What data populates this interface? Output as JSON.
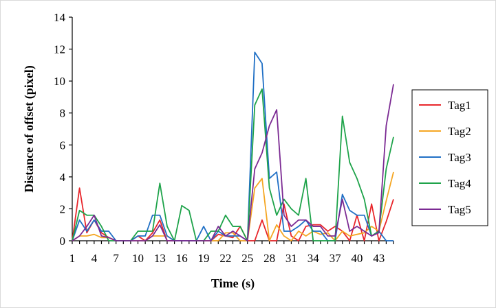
{
  "chart_data": {
    "type": "line",
    "title": "",
    "xlabel": "Time (s)",
    "ylabel": "Distance of offset (pixel)",
    "xlim": [
      1,
      45
    ],
    "ylim": [
      0,
      14
    ],
    "y_ticks": [
      0,
      2,
      4,
      6,
      8,
      10,
      12,
      14
    ],
    "x_ticks": [
      1,
      4,
      7,
      10,
      13,
      16,
      19,
      22,
      25,
      28,
      31,
      34,
      37,
      40,
      43
    ],
    "x": [
      1,
      2,
      3,
      4,
      5,
      6,
      7,
      8,
      9,
      10,
      11,
      12,
      13,
      14,
      15,
      16,
      17,
      18,
      19,
      20,
      21,
      22,
      23,
      24,
      25,
      26,
      27,
      28,
      29,
      30,
      31,
      32,
      33,
      34,
      35,
      36,
      37,
      38,
      39,
      40,
      41,
      42,
      43,
      44,
      45
    ],
    "grid": false,
    "legend_position": "right",
    "series": [
      {
        "name": "Tag1",
        "color": "#e8262b",
        "values": [
          0,
          3.3,
          0.5,
          1.3,
          0.5,
          0.2,
          0,
          0,
          0,
          0.3,
          0,
          0.5,
          1.3,
          0,
          0,
          0,
          0,
          0,
          0,
          0,
          0.4,
          0.3,
          0.2,
          0.9,
          0,
          0,
          1.3,
          0,
          0,
          2.3,
          0.3,
          0,
          0.9,
          1.0,
          1.0,
          0.6,
          0.9,
          0.6,
          0,
          1.6,
          0,
          2.3,
          0,
          1.2,
          2.6
        ]
      },
      {
        "name": "Tag2",
        "color": "#f5a623",
        "values": [
          0,
          0.3,
          0.3,
          0.4,
          0.2,
          0.2,
          0,
          0,
          0,
          0,
          0,
          0.3,
          0.3,
          0.3,
          0,
          0,
          0,
          0,
          0,
          0,
          0,
          0.5,
          0.5,
          0,
          0,
          3.3,
          3.9,
          0,
          1.0,
          0.3,
          0,
          0.6,
          0.3,
          0.6,
          0.4,
          0.5,
          0,
          0.6,
          0.3,
          0.4,
          0.5,
          0.9,
          0.6,
          2.5,
          4.3
        ]
      },
      {
        "name": "Tag3",
        "color": "#1f6fc5",
        "values": [
          0,
          1.3,
          0.6,
          1.3,
          0.6,
          0.6,
          0,
          0,
          0,
          0.3,
          0.3,
          1.6,
          1.6,
          0.3,
          0,
          0,
          0,
          0,
          0.9,
          0,
          0.6,
          0.3,
          0.3,
          0.3,
          0,
          11.8,
          11.1,
          3.9,
          4.3,
          0.6,
          0.6,
          0.9,
          1.3,
          0.6,
          0.6,
          0,
          0,
          2.9,
          1.9,
          1.6,
          1.6,
          0.3,
          0.6,
          0,
          0
        ]
      },
      {
        "name": "Tag4",
        "color": "#1ea34a",
        "values": [
          0,
          1.9,
          1.6,
          1.6,
          0.9,
          0,
          0,
          0,
          0,
          0.6,
          0.6,
          0.6,
          3.6,
          0.9,
          0,
          2.2,
          1.9,
          0,
          0,
          0.6,
          0.6,
          1.6,
          0.9,
          0.9,
          0,
          8.5,
          9.5,
          3.3,
          1.6,
          2.6,
          2.0,
          1.6,
          3.9,
          0,
          0,
          0,
          0,
          7.8,
          4.9,
          3.9,
          2.6,
          0.3,
          0.6,
          4.5,
          6.5
        ]
      },
      {
        "name": "Tag5",
        "color": "#7b2a93",
        "values": [
          0,
          0.3,
          0.9,
          1.6,
          0.3,
          0.2,
          0,
          0,
          0,
          0,
          0,
          0.3,
          1.0,
          0,
          0,
          0,
          0,
          0,
          0,
          0,
          0.9,
          0.3,
          0.6,
          0.3,
          0,
          4.5,
          5.5,
          7.2,
          8.2,
          1.6,
          0.9,
          1.3,
          1.3,
          0.9,
          0.9,
          0.3,
          0.3,
          2.6,
          0.6,
          0.9,
          0.6,
          0.3,
          0.5,
          7.2,
          9.8
        ]
      }
    ]
  }
}
